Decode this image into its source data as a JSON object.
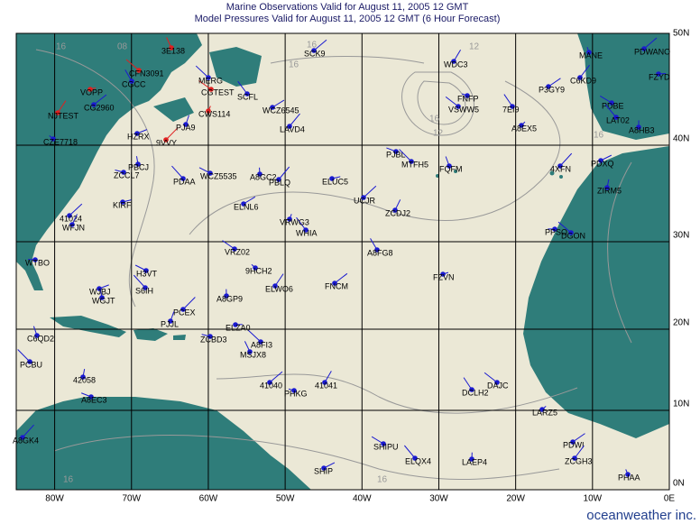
{
  "header": {
    "line1": "Marine Observations Valid for August 11, 2005 12 GMT",
    "line2": "Model Pressures Valid for August 11, 2005 12 GMT (6 Hour Forecast)"
  },
  "lat_labels": [
    "50N",
    "40N",
    "30N",
    "20N",
    "10N",
    "0N"
  ],
  "lon_labels": [
    "80W",
    "70W",
    "60W",
    "50W",
    "40W",
    "30W",
    "20W",
    "10W",
    "0E"
  ],
  "isobar_labels": [
    "16",
    "08",
    "16",
    "12",
    "16",
    "12",
    "16",
    "16",
    "16",
    "16"
  ],
  "stations": [
    "SCK9",
    "WDC3",
    "FNFP",
    "VSWW5",
    "7EI9",
    "A8EX5",
    "P3GY9",
    "C6KD9",
    "MANE",
    "PDBE",
    "LAT02",
    "A8HB3",
    "PDXQ",
    "4XFN",
    "ZIRM5",
    "PJBL",
    "MTFH5",
    "FQFM",
    "ELUC5",
    "UCJR",
    "ZCDJ2",
    "PPSO",
    "DGON",
    "A8FG8",
    "FZVN",
    "FNCM",
    "ELWO6",
    "9HCH2",
    "VRZ02",
    "WHIA",
    "VRWG3",
    "ELNL6",
    "PBLQ",
    "A8GP9",
    "H3VT",
    "S6IH",
    "WGJT",
    "WJBJ",
    "PCEX",
    "PJJL",
    "ZCBD3",
    "A8FI3",
    "MSJX8",
    "ELZA0",
    "41040",
    "41041",
    "PHKG",
    "DAJC",
    "DCLH2",
    "LARZ5",
    "PDWI",
    "ZCGH3",
    "PHAA",
    "SHIPU",
    "ELQX4",
    "LAEP4",
    "SHIP",
    "A8GK4",
    "42058",
    "A8EC3",
    "PCBU",
    "C6QD2",
    "KIRF",
    "41024",
    "WFJN",
    "WTBO",
    "CFN3091",
    "CGCC",
    "VOPP",
    "CG2960",
    "NJTEST",
    "CZE7718",
    "CGTEST",
    "SCFL",
    "CWS114",
    "WCZ6545",
    "LAVD4",
    "A8GC2",
    "WCZ5535",
    "PDAA",
    "PBCJ",
    "HZRX",
    "9VVY",
    "PJA9",
    "ZCCL7",
    "MERG",
    "3E138",
    "FZYD",
    "PDWANO"
  ],
  "brand": "oceanweather inc."
}
